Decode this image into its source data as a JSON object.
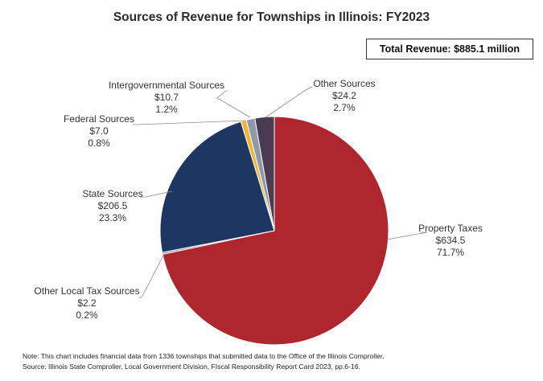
{
  "chart_data": {
    "type": "pie",
    "title": "Sources of Revenue for Townships in Illinois: FY2023",
    "total_label": "Total Revenue: $885.1 million",
    "slices": [
      {
        "label": "Property Taxes",
        "value": 634.5,
        "value_label": "$634.5",
        "percent": 71.7,
        "percent_label": "71.7%",
        "color": "#b0262e"
      },
      {
        "label": "Other Local Tax Sources",
        "value": 2.2,
        "value_label": "$2.2",
        "percent": 0.2,
        "percent_label": "0.2%",
        "color": "#7f8a96"
      },
      {
        "label": "State Sources",
        "value": 206.5,
        "value_label": "$206.5",
        "percent": 23.3,
        "percent_label": "23.3%",
        "color": "#1e3762"
      },
      {
        "label": "Federal Sources",
        "value": 7.0,
        "value_label": "$7.0",
        "percent": 0.8,
        "percent_label": "0.8%",
        "color": "#f2b632"
      },
      {
        "label": "Intergovernmental Sources",
        "value": 10.7,
        "value_label": "$10.7",
        "percent": 1.2,
        "percent_label": "1.2%",
        "color": "#8e9aab"
      },
      {
        "label": "Other Sources",
        "value": 24.2,
        "value_label": "$24.2",
        "percent": 2.7,
        "percent_label": "2.7%",
        "color": "#4a3a52"
      }
    ],
    "start_angle": "12 o'clock",
    "direction": "clockwise"
  },
  "notes": {
    "note": "Note: This chart includes financial data from 1336 townships that submitted data to the Office of the Illinois Comproller.",
    "source": "Source: Illinois State Comproller,  Local Government Division, FIscal Responsibility  Report Card 2023, pp.6-16."
  }
}
